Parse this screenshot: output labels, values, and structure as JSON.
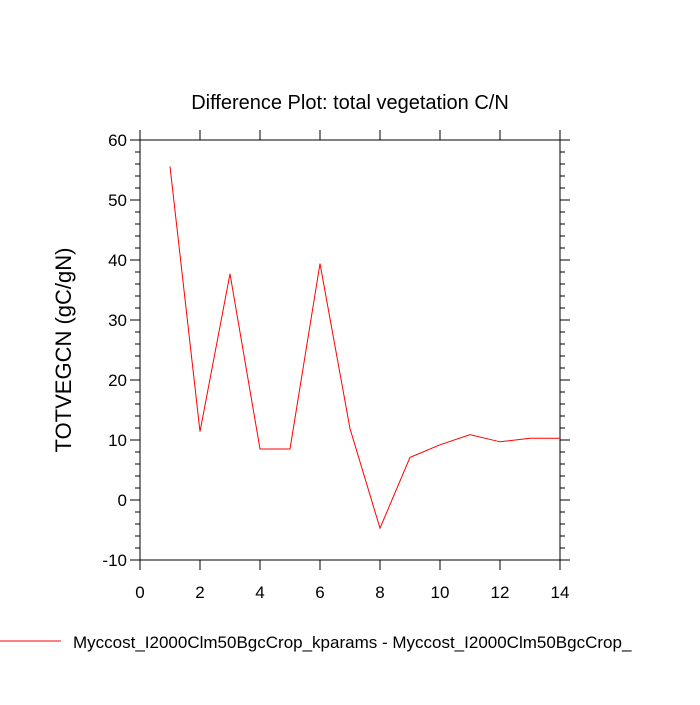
{
  "chart_data": {
    "type": "line",
    "title": "Difference Plot: total vegetation C/N",
    "xlabel": "",
    "ylabel": "TOTVEGCN  (gC/gN)",
    "xlim": [
      0,
      14
    ],
    "ylim": [
      -10,
      60
    ],
    "xticks": [
      0,
      2,
      4,
      6,
      8,
      10,
      12,
      14
    ],
    "yticks": [
      -10,
      0,
      10,
      20,
      30,
      40,
      50,
      60
    ],
    "grid": false,
    "legend_placement": "bottom-left",
    "series": [
      {
        "name": "Myccost_I2000Clm50BgcCrop_kparams - Myccost_I2000Clm50BgcCrop_",
        "color": "#ff0000",
        "x": [
          1,
          2,
          3,
          4,
          5,
          6,
          7,
          8,
          9,
          10,
          11,
          12,
          13,
          14
        ],
        "values": [
          55.6,
          11.4,
          37.7,
          8.5,
          8.5,
          39.4,
          11.9,
          -4.7,
          7.1,
          9.2,
          10.9,
          9.7,
          10.3,
          10.3
        ]
      }
    ]
  }
}
